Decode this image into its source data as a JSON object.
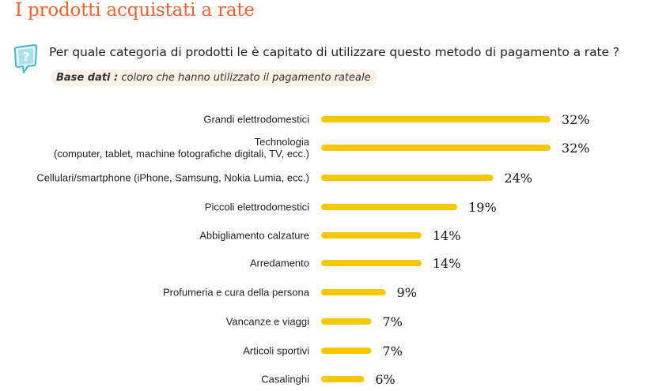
{
  "header": {
    "title": "I prodotti acquistati a rate",
    "question": "Per quale categoria di prodotti le è capitato di utilizzare questo metodo di pagamento a rate ?",
    "base_label": "Base dati :",
    "base_text": " coloro che hanno utilizzato il pagamento rateale"
  },
  "icons": {
    "question": "question-bubble-icon"
  },
  "colors": {
    "title": "#f4602a",
    "bar": "#f7c800",
    "icon": "#3fb6d6"
  },
  "chart_data": {
    "type": "bar",
    "orientation": "horizontal",
    "categories": [
      [
        "Grandi elettrodomestici"
      ],
      [
        "Technologia",
        "(computer, tablet, machine fotografiche digitali, TV, ecc.)"
      ],
      [
        "Cellulari/smartphone (iPhone, Samsung, Nokia Lumia, ecc.)"
      ],
      [
        "Piccoli elettrodomestici"
      ],
      [
        "Abbigliamento calzature"
      ],
      [
        "Arredamento"
      ],
      [
        "Profumeria e cura della persona"
      ],
      [
        "Vancanze e viaggi"
      ],
      [
        "Articoli sportivi"
      ],
      [
        "Casalinghi"
      ]
    ],
    "values": [
      32,
      32,
      24,
      19,
      14,
      14,
      9,
      7,
      7,
      6
    ],
    "value_labels": [
      "32%",
      "32%",
      "24%",
      "19%",
      "14%",
      "14%",
      "9%",
      "7%",
      "7%",
      "6%"
    ],
    "unit": "%"
  }
}
